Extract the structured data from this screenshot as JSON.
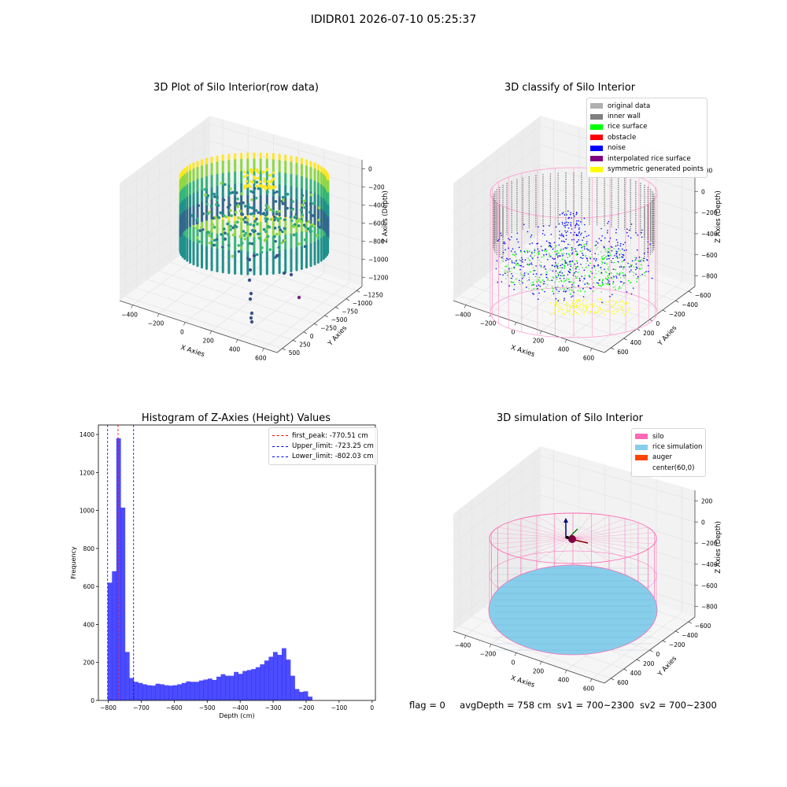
{
  "figure_title": "IDIDR01 2026-07-10 05:25:37",
  "footer": {
    "flag": "flag = 0",
    "avg_depth": "avgDepth = 758 cm",
    "sv1": "sv1 = 700~2300",
    "sv2": "sv2 = 700~2300"
  },
  "chart_data": [
    {
      "type": "scatter",
      "projection": "3d",
      "title": "3D Plot of Silo Interior(row data)",
      "xlabel": "X Axies",
      "ylabel": "Y Axies",
      "zlabel": "Z Axies (Depth)",
      "xticks": [
        "−400",
        "−200",
        "0",
        "200",
        "400",
        "600"
      ],
      "yticks": [
        "500",
        "250",
        "0",
        "−250",
        "−500",
        "−750",
        "−1000",
        "−1250"
      ],
      "zticks": [
        "0",
        "−200",
        "−400",
        "−600",
        "−800",
        "−1000",
        "−1200"
      ],
      "colormap": "viridis",
      "colormap_colors": [
        "#440154",
        "#31688e",
        "#21918c",
        "#35b779",
        "#90d743",
        "#fde725"
      ]
    },
    {
      "type": "scatter",
      "projection": "3d",
      "title": "3D classify of Silo Interior",
      "xticks": [
        "−400",
        "−200",
        "0",
        "200",
        "400",
        "600"
      ],
      "yticks": [
        "600",
        "400",
        "200",
        "0",
        "−200",
        "−400",
        "−600"
      ],
      "zticks": [
        "200",
        "0",
        "−200",
        "−400",
        "−600",
        "−800"
      ],
      "xlabel": "X Axies",
      "ylabel": "Y Axies",
      "zlabel": "Z Axies (Depth)",
      "legend_position": "upper right",
      "legend": [
        {
          "label": "original data",
          "color": "#b0b0b0"
        },
        {
          "label": "inner wall",
          "color": "#808080"
        },
        {
          "label": "rice surface",
          "color": "#00ff00"
        },
        {
          "label": "obstacle",
          "color": "#ff0000"
        },
        {
          "label": "noise",
          "color": "#0000ff"
        },
        {
          "label": "interpolated rice surface",
          "color": "#800080"
        },
        {
          "label": "symmetric generated points",
          "color": "#ffff00"
        }
      ],
      "wireframe_color": "#ff99cc"
    },
    {
      "type": "bar",
      "title": "Histogram of Z-Axies (Height) Values",
      "xlabel": "Depth (cm)",
      "ylabel": "Frequency",
      "xlim": [
        -830,
        10
      ],
      "ylim": [
        0,
        1450
      ],
      "xticks": [
        -800,
        -700,
        -600,
        -500,
        -400,
        -300,
        -200,
        -100,
        0
      ],
      "yticks": [
        0,
        200,
        400,
        600,
        800,
        1000,
        1200,
        1400
      ],
      "bar_color": "#0000ff",
      "bin_start": -802,
      "bin_width": 13.2,
      "counts": [
        620,
        680,
        1380,
        1015,
        255,
        118,
        98,
        92,
        85,
        80,
        78,
        88,
        85,
        80,
        78,
        80,
        85,
        92,
        100,
        98,
        98,
        105,
        110,
        115,
        108,
        125,
        138,
        130,
        130,
        150,
        140,
        155,
        160,
        165,
        175,
        190,
        210,
        230,
        255,
        240,
        275,
        215,
        130,
        60,
        45,
        48,
        20
      ],
      "vlines": [
        {
          "label": "first_peak: -770.51 cm",
          "x": -770.51,
          "color": "#ff0000"
        },
        {
          "label": "Upper_limit: -723.25 cm",
          "x": -723.25,
          "color": "#0000ff"
        },
        {
          "label": "Lower_limit: -802.03 cm",
          "x": -802.03,
          "color": "#0000ff"
        }
      ],
      "legend_position": "upper right"
    },
    {
      "type": "surface",
      "projection": "3d",
      "title": "3D simulation of Silo Interior",
      "xlabel": "X Axies",
      "ylabel": "Y Axies",
      "zlabel": "Z Axies (Depth)",
      "xticks": [
        "−400",
        "−200",
        "0",
        "200",
        "400",
        "600"
      ],
      "yticks": [
        "600",
        "400",
        "200",
        "0",
        "−200",
        "−400",
        "−600"
      ],
      "zticks": [
        "200",
        "0",
        "−200",
        "−400",
        "−600",
        "−800"
      ],
      "legend_position": "upper right",
      "legend": [
        {
          "label": "silo",
          "color": "#ff69b4"
        },
        {
          "label": "rice simulation",
          "color": "#87ceeb"
        },
        {
          "label": "auger",
          "color": "#ff4500"
        },
        {
          "label": "center(60,0)",
          "color": "transparent"
        }
      ]
    }
  ]
}
